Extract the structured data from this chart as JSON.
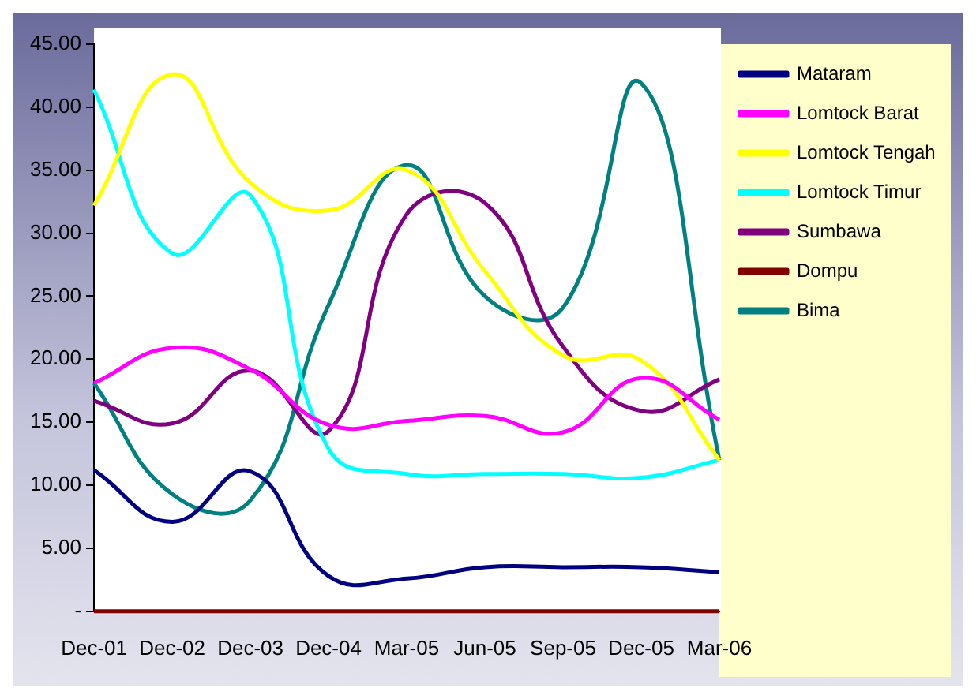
{
  "chart_data": {
    "type": "line",
    "categories": [
      "Dec-01",
      "Dec-02",
      "Dec-03",
      "Dec-04",
      "Mar-05",
      "Jun-05",
      "Sep-05",
      "Dec-05",
      "Mar-06"
    ],
    "series": [
      {
        "name": "Mataram",
        "color": "#000080",
        "values": [
          11.2,
          7.1,
          11.1,
          2.8,
          2.6,
          3.5,
          3.5,
          3.5,
          3.1
        ]
      },
      {
        "name": "Lomtock Barat",
        "color": "#ff00ff",
        "values": [
          18.1,
          20.9,
          19.2,
          14.8,
          15.1,
          15.5,
          14.2,
          18.5,
          15.2
        ]
      },
      {
        "name": "Lomtock Tengah",
        "color": "#ffff00",
        "values": [
          32.2,
          42.6,
          34.0,
          31.8,
          35.0,
          27.0,
          20.3,
          19.9,
          12.0
        ]
      },
      {
        "name": "Lomtock Timur",
        "color": "#00ffff",
        "values": [
          41.4,
          28.4,
          33.0,
          12.9,
          10.9,
          10.9,
          10.9,
          10.6,
          12.0
        ]
      },
      {
        "name": "Sumbawa",
        "color": "#800080",
        "values": [
          16.7,
          14.9,
          19.1,
          14.3,
          31.5,
          32.4,
          21.0,
          15.9,
          18.4
        ]
      },
      {
        "name": "Dompu",
        "color": "#800000",
        "values": [
          0,
          0,
          0,
          0,
          0,
          0,
          0,
          0,
          0
        ]
      },
      {
        "name": "Bima",
        "color": "#008080",
        "values": [
          18.1,
          9.3,
          8.8,
          24.3,
          35.4,
          25.0,
          24.1,
          41.9,
          12.0
        ]
      }
    ],
    "ylim": [
      0,
      45
    ],
    "yticks": [
      {
        "value": 0,
        "label": "-"
      },
      {
        "value": 5,
        "label": "5.00"
      },
      {
        "value": 10,
        "label": "10.00"
      },
      {
        "value": 15,
        "label": "15.00"
      },
      {
        "value": 20,
        "label": "20.00"
      },
      {
        "value": 25,
        "label": "25.00"
      },
      {
        "value": 30,
        "label": "30.00"
      },
      {
        "value": 35,
        "label": "35.00"
      },
      {
        "value": 40,
        "label": "40.00"
      },
      {
        "value": 45,
        "label": "45.00"
      }
    ],
    "grid": false,
    "legend": "right",
    "marker": "none",
    "line_style": "solid"
  }
}
